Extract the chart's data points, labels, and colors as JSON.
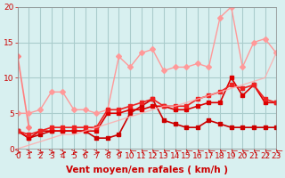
{
  "bg_color": "#d8f0f0",
  "grid_color": "#aacccc",
  "xlabel": "Vent moyen/en rafales ( km/h )",
  "ylabel": "",
  "xlim": [
    0,
    23
  ],
  "ylim": [
    0,
    20
  ],
  "xticks": [
    0,
    1,
    2,
    3,
    4,
    5,
    6,
    7,
    8,
    9,
    10,
    11,
    12,
    13,
    14,
    15,
    16,
    17,
    18,
    19,
    20,
    21,
    22,
    23
  ],
  "yticks": [
    0,
    5,
    10,
    15,
    20
  ],
  "series": [
    {
      "x": [
        0,
        1,
        2,
        3,
        4,
        5,
        6,
        7,
        8,
        9,
        10,
        11,
        12,
        13,
        14,
        15,
        16,
        17,
        18,
        19,
        20,
        21,
        22,
        23
      ],
      "y": [
        13,
        3,
        null,
        null,
        null,
        null,
        null,
        null,
        null,
        null,
        null,
        null,
        null,
        null,
        null,
        null,
        null,
        null,
        null,
        null,
        null,
        null,
        null,
        null
      ],
      "color": "#ff8080",
      "linewidth": 1.2,
      "markersize": 3,
      "linestyle": "-",
      "marker": "D",
      "alpha": 1.0
    },
    {
      "x": [
        0,
        1,
        2,
        3,
        4,
        5,
        6,
        7,
        8,
        9,
        10,
        11,
        12,
        13,
        14,
        15,
        16,
        17,
        18,
        19,
        20,
        21,
        22,
        23
      ],
      "y": [
        5,
        5,
        5.5,
        8,
        8,
        5.5,
        5.5,
        5,
        5.5,
        13,
        11.5,
        13.5,
        14,
        11,
        11.5,
        11.5,
        12,
        11.5,
        18.5,
        20,
        11.5,
        15,
        15.5,
        13.5
      ],
      "color": "#ff9999",
      "linewidth": 1.0,
      "markersize": 3,
      "linestyle": "-",
      "marker": "D",
      "alpha": 1.0
    },
    {
      "x": [
        0,
        1,
        2,
        3,
        4,
        5,
        6,
        7,
        8,
        9,
        10,
        11,
        12,
        13,
        14,
        15,
        16,
        17,
        18,
        19,
        20,
        21,
        22,
        23
      ],
      "y": [
        2.5,
        1.5,
        2,
        2.5,
        2.5,
        2.5,
        2.5,
        1.5,
        1.5,
        2,
        5,
        6,
        7,
        4,
        3.5,
        3,
        3,
        4,
        3.5,
        3,
        3,
        3,
        3,
        3
      ],
      "color": "#cc0000",
      "linewidth": 1.2,
      "markersize": 3,
      "linestyle": "-",
      "marker": "s",
      "alpha": 1.0
    },
    {
      "x": [
        0,
        1,
        2,
        3,
        4,
        5,
        6,
        7,
        8,
        9,
        10,
        11,
        12,
        13,
        14,
        15,
        16,
        17,
        18,
        19,
        20,
        21,
        22,
        23
      ],
      "y": [
        2.5,
        1.5,
        2.5,
        2.5,
        2.5,
        2.5,
        2.5,
        2.5,
        5,
        5,
        5.5,
        5.5,
        6,
        6,
        5.5,
        5.5,
        6,
        6.5,
        6.5,
        10,
        7.5,
        9,
        6.5,
        6.5
      ],
      "color": "#dd0000",
      "linewidth": 1.2,
      "markersize": 3,
      "linestyle": "-",
      "marker": "s",
      "alpha": 1.0
    },
    {
      "x": [
        0,
        1,
        2,
        3,
        4,
        5,
        6,
        7,
        8,
        9,
        10,
        11,
        12,
        13,
        14,
        15,
        16,
        17,
        18,
        19,
        20,
        21,
        22,
        23
      ],
      "y": [
        2.5,
        2,
        2.5,
        3,
        3,
        3,
        3,
        3,
        5.5,
        5.5,
        6,
        6.5,
        7,
        6,
        6,
        6,
        7,
        7.5,
        8,
        9,
        8.5,
        9,
        7,
        6.5
      ],
      "color": "#ee2222",
      "linewidth": 1.2,
      "markersize": 3,
      "linestyle": "-",
      "marker": "s",
      "alpha": 1.0
    },
    {
      "x": [
        0,
        1,
        2,
        3,
        4,
        5,
        6,
        7,
        8,
        9,
        10,
        11,
        12,
        13,
        14,
        15,
        16,
        17,
        18,
        19,
        20,
        21,
        22,
        23
      ],
      "y": [
        0,
        0.5,
        1,
        1.5,
        2,
        2,
        2.5,
        3,
        3.5,
        4,
        4.5,
        5,
        5.5,
        6,
        6,
        6.5,
        7,
        7.5,
        8,
        8.5,
        9,
        9.5,
        10,
        13.5
      ],
      "color": "#ffaaaa",
      "linewidth": 1.0,
      "markersize": 2,
      "linestyle": "-",
      "marker": null,
      "alpha": 0.8
    }
  ],
  "tick_color": "#cc0000",
  "label_color": "#cc0000",
  "tick_fontsize": 6.5,
  "label_fontsize": 7.5
}
